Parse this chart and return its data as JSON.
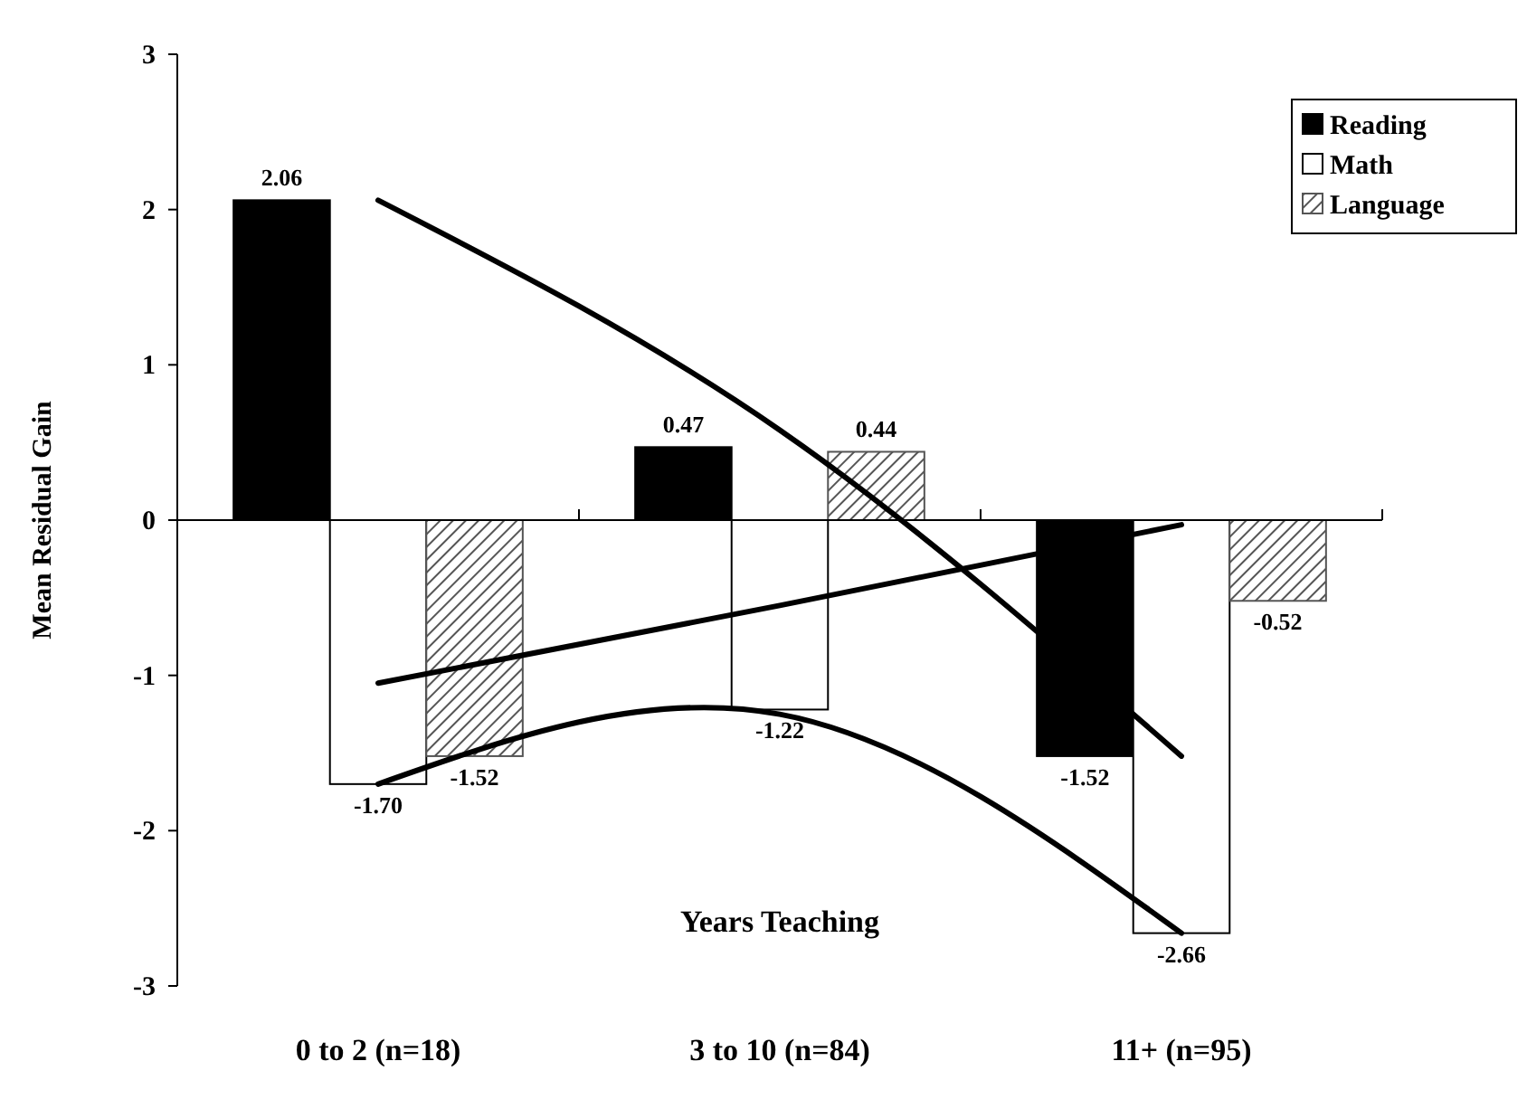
{
  "chart_data": {
    "type": "bar",
    "xlabel": "Years Teaching",
    "ylabel": "Mean Residual Gain",
    "categories": [
      "0 to 2 (n=18)",
      "3 to 10 (n=84)",
      "11+ (n=95)"
    ],
    "series": [
      {
        "name": "Reading",
        "color": "#000000",
        "values": [
          2.06,
          0.47,
          -1.52
        ],
        "value_labels": [
          "2.06",
          "0.47",
          "-1.52"
        ]
      },
      {
        "name": "Math",
        "color": "#ffffff",
        "values": [
          -1.7,
          -1.22,
          -2.66
        ],
        "value_labels": [
          "-1.70",
          "-1.22",
          "-2.66"
        ]
      },
      {
        "name": "Language",
        "color": "#555555",
        "values": [
          -1.52,
          0.44,
          -0.52
        ],
        "value_labels": [
          "-1.52",
          "0.44",
          "-0.52"
        ]
      },
      {
        "type": "line",
        "color": "#000000",
        "values": [
          2.06,
          0.58,
          -1.52
        ]
      },
      {
        "type": "line",
        "color": "#000000",
        "values": [
          -1.05,
          -0.55,
          -0.03
        ]
      },
      {
        "type": "line",
        "color": "#000000",
        "values": [
          -1.7,
          -1.25,
          -2.66
        ]
      }
    ],
    "ylim": [
      -3,
      3
    ],
    "yticks": [
      -3,
      -2,
      -1,
      0,
      1,
      2,
      3
    ],
    "legend": "top right"
  }
}
